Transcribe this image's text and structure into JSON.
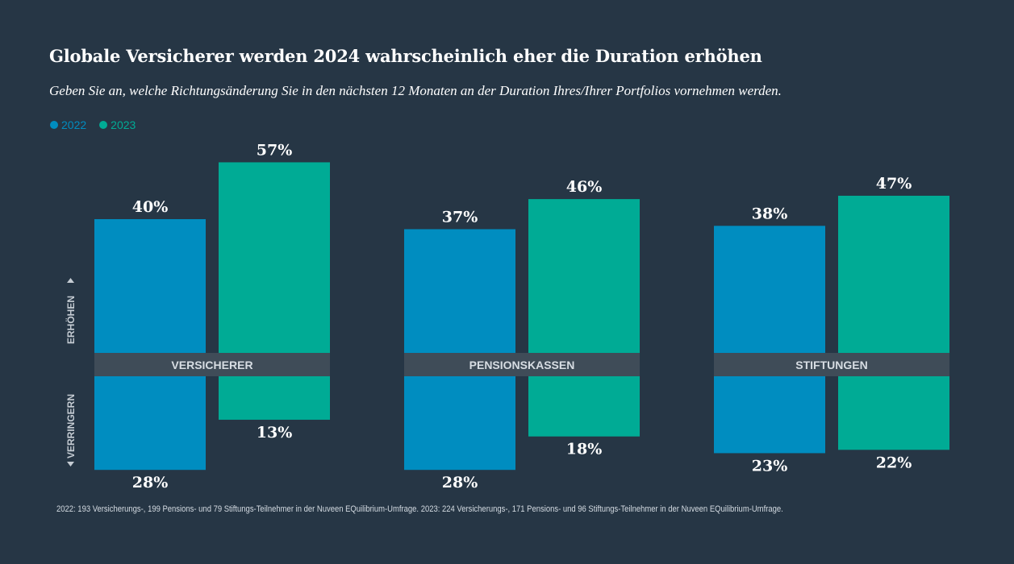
{
  "chart_data": {
    "type": "bar",
    "title": "Globale Versicherer werden 2024 wahrscheinlich eher die Duration erhöhen",
    "subtitle": "Geben Sie an, welche Richtungsänderung Sie in den nächsten 12 Monaten an der Duration Ihres/Ihrer Portfolios vornehmen werden.",
    "legend": [
      {
        "label": "2022",
        "color": "#008dc0"
      },
      {
        "label": "2023",
        "color": "#00ab95"
      }
    ],
    "categories": [
      "VERSICHERER",
      "PENSIONSKASSEN",
      "STIFTUNGEN"
    ],
    "axis_labels": {
      "up": "ERHÖHEN",
      "down": "VERRINGERN"
    },
    "series": [
      {
        "name": "2022",
        "color": "#008dc0",
        "increase": [
          40,
          37,
          38
        ],
        "decrease": [
          28,
          28,
          23
        ],
        "increase_labels": [
          "40%",
          "37%",
          "38%"
        ],
        "decrease_labels": [
          "28%",
          "28%",
          "23%"
        ]
      },
      {
        "name": "2023",
        "color": "#00ab95",
        "increase": [
          57,
          46,
          47
        ],
        "decrease": [
          13,
          18,
          22
        ],
        "increase_labels": [
          "57%",
          "46%",
          "47%"
        ],
        "decrease_labels": [
          "13%",
          "18%",
          "22%"
        ]
      }
    ],
    "footnote": "2022: 193 Versicherungs-, 199 Pensions- und 79 Stiftungs-Teilnehmer in der Nuveen EQuilibrium-Umfrage. 2023: 224 Versicherungs-, 171 Pensions- und 96 Stiftungs-Teilnehmer in der Nuveen EQuilibrium-Umfrage."
  }
}
